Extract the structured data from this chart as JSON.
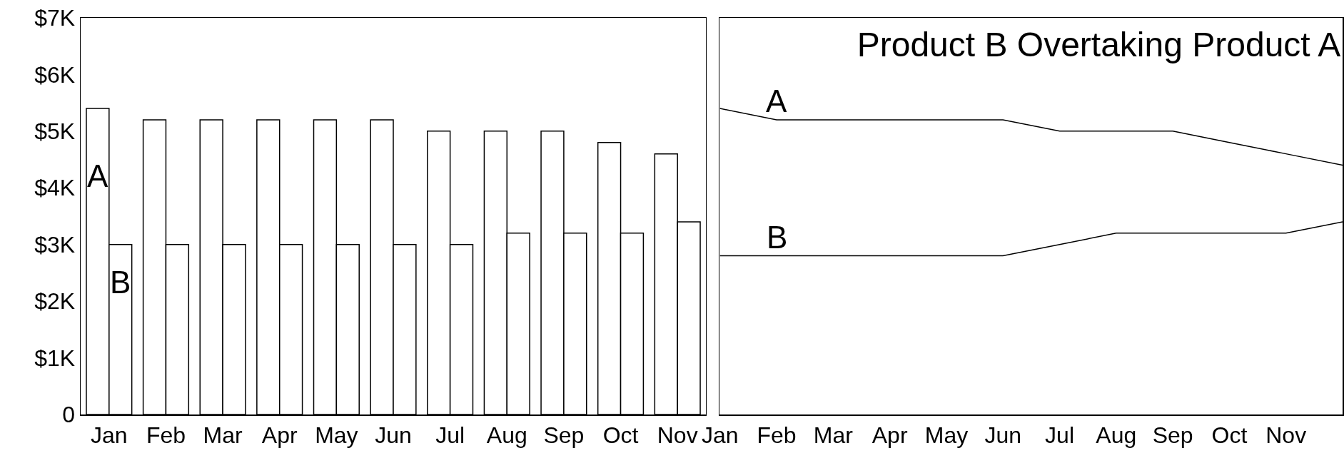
{
  "chart_data": [
    {
      "type": "bar",
      "categories": [
        "Jan",
        "Feb",
        "Mar",
        "Apr",
        "May",
        "Jun",
        "Jul",
        "Aug",
        "Sep",
        "Oct",
        "Nov"
      ],
      "series": [
        {
          "name": "A",
          "color": "#ffffff",
          "values": [
            5400,
            5200,
            5200,
            5200,
            5200,
            5200,
            5000,
            5000,
            5000,
            4800,
            4600
          ]
        },
        {
          "name": "B",
          "color": "#ffffff",
          "values": [
            3000,
            3000,
            3000,
            3000,
            3000,
            3000,
            3000,
            3200,
            3200,
            3200,
            3400
          ]
        }
      ],
      "ylim": [
        0,
        7000
      ],
      "yticks": [
        {
          "value": 0,
          "label": "0"
        },
        {
          "value": 1000,
          "label": "$1K"
        },
        {
          "value": 2000,
          "label": "$2K"
        },
        {
          "value": 3000,
          "label": "$3K"
        },
        {
          "value": 4000,
          "label": "$4K"
        },
        {
          "value": 5000,
          "label": "$5K"
        },
        {
          "value": 6000,
          "label": "$6K"
        },
        {
          "value": 7000,
          "label": "$7K"
        }
      ]
    },
    {
      "type": "line",
      "title": "Product B Overtaking Product A",
      "categories": [
        "Jan",
        "Feb",
        "Mar",
        "Apr",
        "May",
        "Jun",
        "Jul",
        "Aug",
        "Sep",
        "Oct",
        "Nov",
        null
      ],
      "series": [
        {
          "name": "A",
          "color": "#000000",
          "values": [
            5400,
            5200,
            5200,
            5200,
            5200,
            5200,
            5000,
            5000,
            5000,
            4800,
            4600,
            4400
          ]
        },
        {
          "name": "B",
          "color": "#000000",
          "values": [
            2800,
            2800,
            2800,
            2800,
            2800,
            2800,
            3000,
            3200,
            3200,
            3200,
            3200,
            3400
          ]
        }
      ],
      "ylim": [
        0,
        7000
      ],
      "tick_labels": "x"
    }
  ]
}
